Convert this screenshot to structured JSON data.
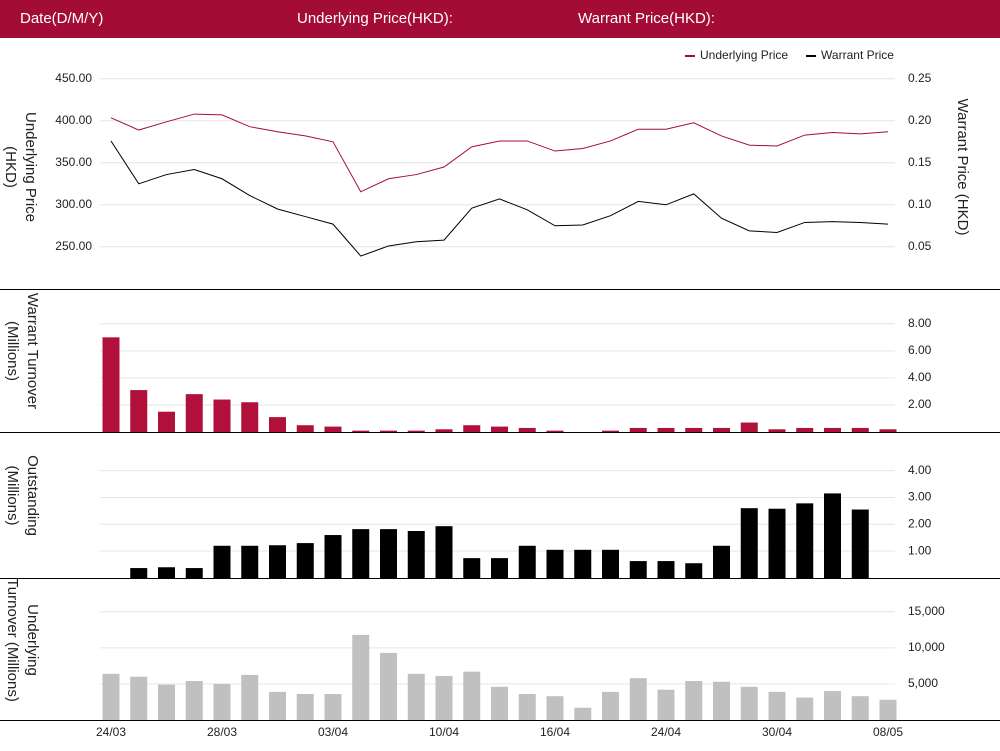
{
  "header": {
    "date_label": "Date(D/M/Y)",
    "underlying_label": "Underlying Price(HKD):",
    "warrant_label": "Warrant Price(HKD):"
  },
  "chart_data": [
    {
      "type": "line",
      "y_label": [
        "Underlying Price",
        "(HKD)"
      ],
      "y2_label": [
        "Warrant  Price (HKD)"
      ],
      "ylim": [
        220,
        470
      ],
      "yticks": [
        {
          "value": 250,
          "label": "250.00"
        },
        {
          "value": 300,
          "label": "300.00"
        },
        {
          "value": 350,
          "label": "350.00"
        },
        {
          "value": 400,
          "label": "400.00"
        },
        {
          "value": 450,
          "label": "450.00"
        }
      ],
      "y2lim": [
        0.02,
        0.27
      ],
      "y2ticks": [
        0.05,
        {
          "value": 0.1,
          "label": "0.10"
        },
        0.15,
        {
          "value": 0.2,
          "label": "0.20"
        },
        0.25
      ],
      "grid": true,
      "legend": "top-right",
      "series": [
        {
          "name": "Underlying Price",
          "color": "#a50e33",
          "axis": "y",
          "values": [
            403.6,
            389,
            398.8,
            408,
            407,
            393,
            387,
            382,
            375,
            315.5,
            331,
            336,
            345,
            369,
            376,
            376,
            364,
            367,
            376,
            390,
            390,
            397.6,
            382,
            371,
            370,
            383,
            386,
            384.5,
            387
          ]
        },
        {
          "name": "Warrant Price",
          "color": "#000000",
          "axis": "y2",
          "values": [
            0.176,
            0.125,
            0.136,
            0.142,
            0.131,
            0.111,
            0.095,
            0.086,
            0.077,
            0.039,
            0.051,
            0.056,
            0.058,
            0.096,
            0.107,
            0.094,
            0.075,
            0.076,
            0.087,
            0.104,
            0.1,
            0.113,
            0.084,
            0.069,
            0.067,
            0.079,
            0.08,
            0.079,
            0.077
          ]
        }
      ]
    },
    {
      "type": "bar",
      "y_label": [
        "Warrant  Turnover",
        "(Millions)"
      ],
      "color": "#b0103a",
      "grid": true,
      "ylim": [
        0,
        10.5
      ],
      "yticks": [
        {
          "value": 2,
          "label": "2.00"
        },
        {
          "value": 4,
          "label": "4.00"
        },
        {
          "value": 6,
          "label": "6.00"
        },
        {
          "value": 8,
          "label": "8.00"
        }
      ],
      "values": [
        7.0,
        3.1,
        1.5,
        2.8,
        2.4,
        2.2,
        1.1,
        0.5,
        0.4,
        0.1,
        0.1,
        0.1,
        0.2,
        0.5,
        0.4,
        0.3,
        0.1,
        0,
        0.1,
        0.3,
        0.3,
        0.3,
        0.3,
        0.7,
        0.2,
        0.3,
        0.3,
        0.3,
        0.2
      ]
    },
    {
      "type": "bar",
      "y_label": [
        "Outstanding",
        "(Millions)"
      ],
      "color": "#000000",
      "grid": true,
      "ylim": [
        0,
        5.4
      ],
      "yticks": [
        {
          "value": 1,
          "label": "1.00"
        },
        {
          "value": 2,
          "label": "2.00"
        },
        {
          "value": 3,
          "label": "3.00"
        },
        {
          "value": 4,
          "label": "4.00"
        }
      ],
      "values": [
        null,
        0.37,
        0.4,
        0.37,
        1.2,
        1.2,
        1.22,
        1.3,
        1.6,
        1.82,
        1.82,
        1.75,
        1.93,
        0.74,
        0.74,
        1.2,
        1.05,
        1.05,
        1.05,
        0.63,
        0.63,
        0.55,
        1.2,
        2.6,
        2.58,
        2.78,
        3.15,
        2.55,
        null
      ]
    },
    {
      "type": "bar",
      "y_label": [
        "Underlying",
        "Turnover (Millions)"
      ],
      "color": "#c0c0c0",
      "grid": true,
      "ylim": [
        0,
        19400
      ],
      "yticks": [
        {
          "value": 5000,
          "label": "5,000"
        },
        {
          "value": 10000,
          "label": "10,000"
        },
        {
          "value": 15000,
          "label": "15,000"
        }
      ],
      "values": [
        6400,
        6000,
        4900,
        5400,
        5000,
        6250,
        3900,
        3600,
        3600,
        11800,
        9300,
        6400,
        6100,
        6700,
        4600,
        3600,
        3300,
        1700,
        3900,
        5800,
        4200,
        5400,
        5300,
        4600,
        3900,
        3100,
        4000,
        3300,
        2800
      ],
      "categories": [
        "24/03",
        null,
        null,
        null,
        "28/03",
        null,
        null,
        null,
        "03/04",
        null,
        null,
        null,
        "10/04",
        null,
        null,
        null,
        "16/04",
        null,
        null,
        null,
        "24/04",
        null,
        null,
        null,
        "30/04",
        null,
        null,
        null,
        "08/05"
      ]
    }
  ]
}
